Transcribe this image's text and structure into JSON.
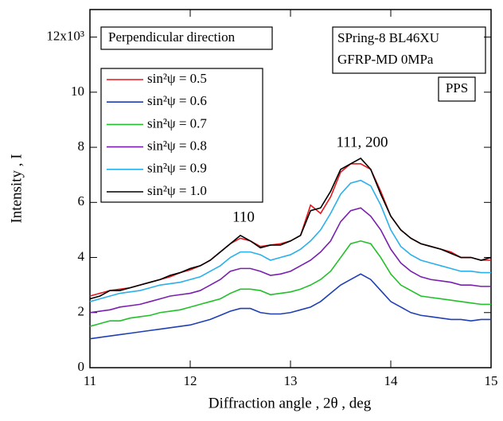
{
  "chart_data": {
    "type": "line",
    "x_label": "Diffraction angle , 2θ , deg",
    "y_label": "Intensity , I",
    "annotations": [
      "Perpendicular direction",
      "SPring-8 BL46XU",
      "GFRP-MD 0MPa",
      "PPS",
      "110",
      "111, 200"
    ],
    "x": [
      11.0,
      11.1,
      11.2,
      11.3,
      11.4,
      11.5,
      11.6,
      11.7,
      11.8,
      11.9,
      12.0,
      12.1,
      12.2,
      12.3,
      12.4,
      12.5,
      12.6,
      12.7,
      12.8,
      12.9,
      13.0,
      13.1,
      13.2,
      13.3,
      13.4,
      13.5,
      13.6,
      13.7,
      13.8,
      13.9,
      14.0,
      14.1,
      14.2,
      14.3,
      14.4,
      14.5,
      14.6,
      14.7,
      14.8,
      14.9,
      15.0
    ],
    "series": [
      {
        "name": "sin²ψ = 0.5",
        "color": "#e8161b",
        "values": [
          2.6,
          2.7,
          2.8,
          2.85,
          2.9,
          3.0,
          3.1,
          3.2,
          3.3,
          3.45,
          3.55,
          3.7,
          3.9,
          4.2,
          4.5,
          4.7,
          4.6,
          4.4,
          4.45,
          4.5,
          4.6,
          4.8,
          5.9,
          5.6,
          6.2,
          7.1,
          7.4,
          7.4,
          7.2,
          6.4,
          5.5,
          5.0,
          4.7,
          4.5,
          4.4,
          4.3,
          4.2,
          4.0,
          4.0,
          3.9,
          3.9
        ]
      },
      {
        "name": "sin²ψ = 0.6",
        "color": "#1f3fb4",
        "values": [
          1.05,
          1.1,
          1.15,
          1.2,
          1.25,
          1.3,
          1.35,
          1.4,
          1.45,
          1.5,
          1.55,
          1.65,
          1.75,
          1.9,
          2.05,
          2.15,
          2.15,
          2.0,
          1.95,
          1.95,
          2.0,
          2.1,
          2.2,
          2.4,
          2.7,
          3.0,
          3.2,
          3.4,
          3.2,
          2.8,
          2.4,
          2.2,
          2.0,
          1.9,
          1.85,
          1.8,
          1.75,
          1.75,
          1.7,
          1.75,
          1.75
        ]
      },
      {
        "name": "sin²ψ = 0.7",
        "color": "#22c02a",
        "values": [
          1.5,
          1.6,
          1.7,
          1.7,
          1.8,
          1.85,
          1.9,
          2.0,
          2.05,
          2.1,
          2.2,
          2.3,
          2.4,
          2.5,
          2.7,
          2.85,
          2.85,
          2.8,
          2.65,
          2.7,
          2.75,
          2.85,
          3.0,
          3.2,
          3.5,
          4.0,
          4.5,
          4.6,
          4.5,
          4.0,
          3.4,
          3.0,
          2.8,
          2.6,
          2.55,
          2.5,
          2.45,
          2.4,
          2.35,
          2.3,
          2.3
        ]
      },
      {
        "name": "sin²ψ = 0.8",
        "color": "#7a1fb0",
        "values": [
          2.0,
          2.05,
          2.1,
          2.2,
          2.25,
          2.3,
          2.4,
          2.5,
          2.6,
          2.65,
          2.7,
          2.8,
          3.0,
          3.2,
          3.5,
          3.6,
          3.6,
          3.5,
          3.35,
          3.4,
          3.5,
          3.7,
          3.9,
          4.2,
          4.6,
          5.3,
          5.7,
          5.8,
          5.5,
          5.0,
          4.3,
          3.8,
          3.5,
          3.3,
          3.2,
          3.15,
          3.1,
          3.0,
          3.0,
          2.95,
          2.95
        ]
      },
      {
        "name": "sin²ψ = 0.9",
        "color": "#2ab0ea",
        "values": [
          2.4,
          2.5,
          2.6,
          2.7,
          2.75,
          2.8,
          2.9,
          3.0,
          3.05,
          3.1,
          3.2,
          3.3,
          3.5,
          3.7,
          4.0,
          4.2,
          4.2,
          4.1,
          3.9,
          4.0,
          4.1,
          4.3,
          4.6,
          5.0,
          5.6,
          6.3,
          6.7,
          6.8,
          6.6,
          5.9,
          5.0,
          4.4,
          4.1,
          3.9,
          3.8,
          3.7,
          3.6,
          3.5,
          3.5,
          3.45,
          3.45
        ]
      },
      {
        "name": "sin²ψ = 1.0",
        "color": "#000000",
        "values": [
          2.5,
          2.6,
          2.8,
          2.8,
          2.9,
          3.0,
          3.1,
          3.2,
          3.35,
          3.45,
          3.6,
          3.7,
          3.9,
          4.2,
          4.5,
          4.8,
          4.6,
          4.35,
          4.45,
          4.45,
          4.6,
          4.8,
          5.7,
          5.8,
          6.4,
          7.2,
          7.4,
          7.6,
          7.2,
          6.3,
          5.5,
          5.0,
          4.7,
          4.5,
          4.4,
          4.3,
          4.15,
          4.0,
          4.0,
          3.9,
          4.0
        ]
      }
    ],
    "xlim": [
      11,
      15
    ],
    "ylim": [
      0,
      13
    ],
    "xticks": [
      11,
      12,
      13,
      14,
      15
    ],
    "yticks": [
      0,
      2,
      4,
      6,
      8,
      10,
      {
        "value": 12,
        "label": "12x10³"
      }
    ]
  }
}
